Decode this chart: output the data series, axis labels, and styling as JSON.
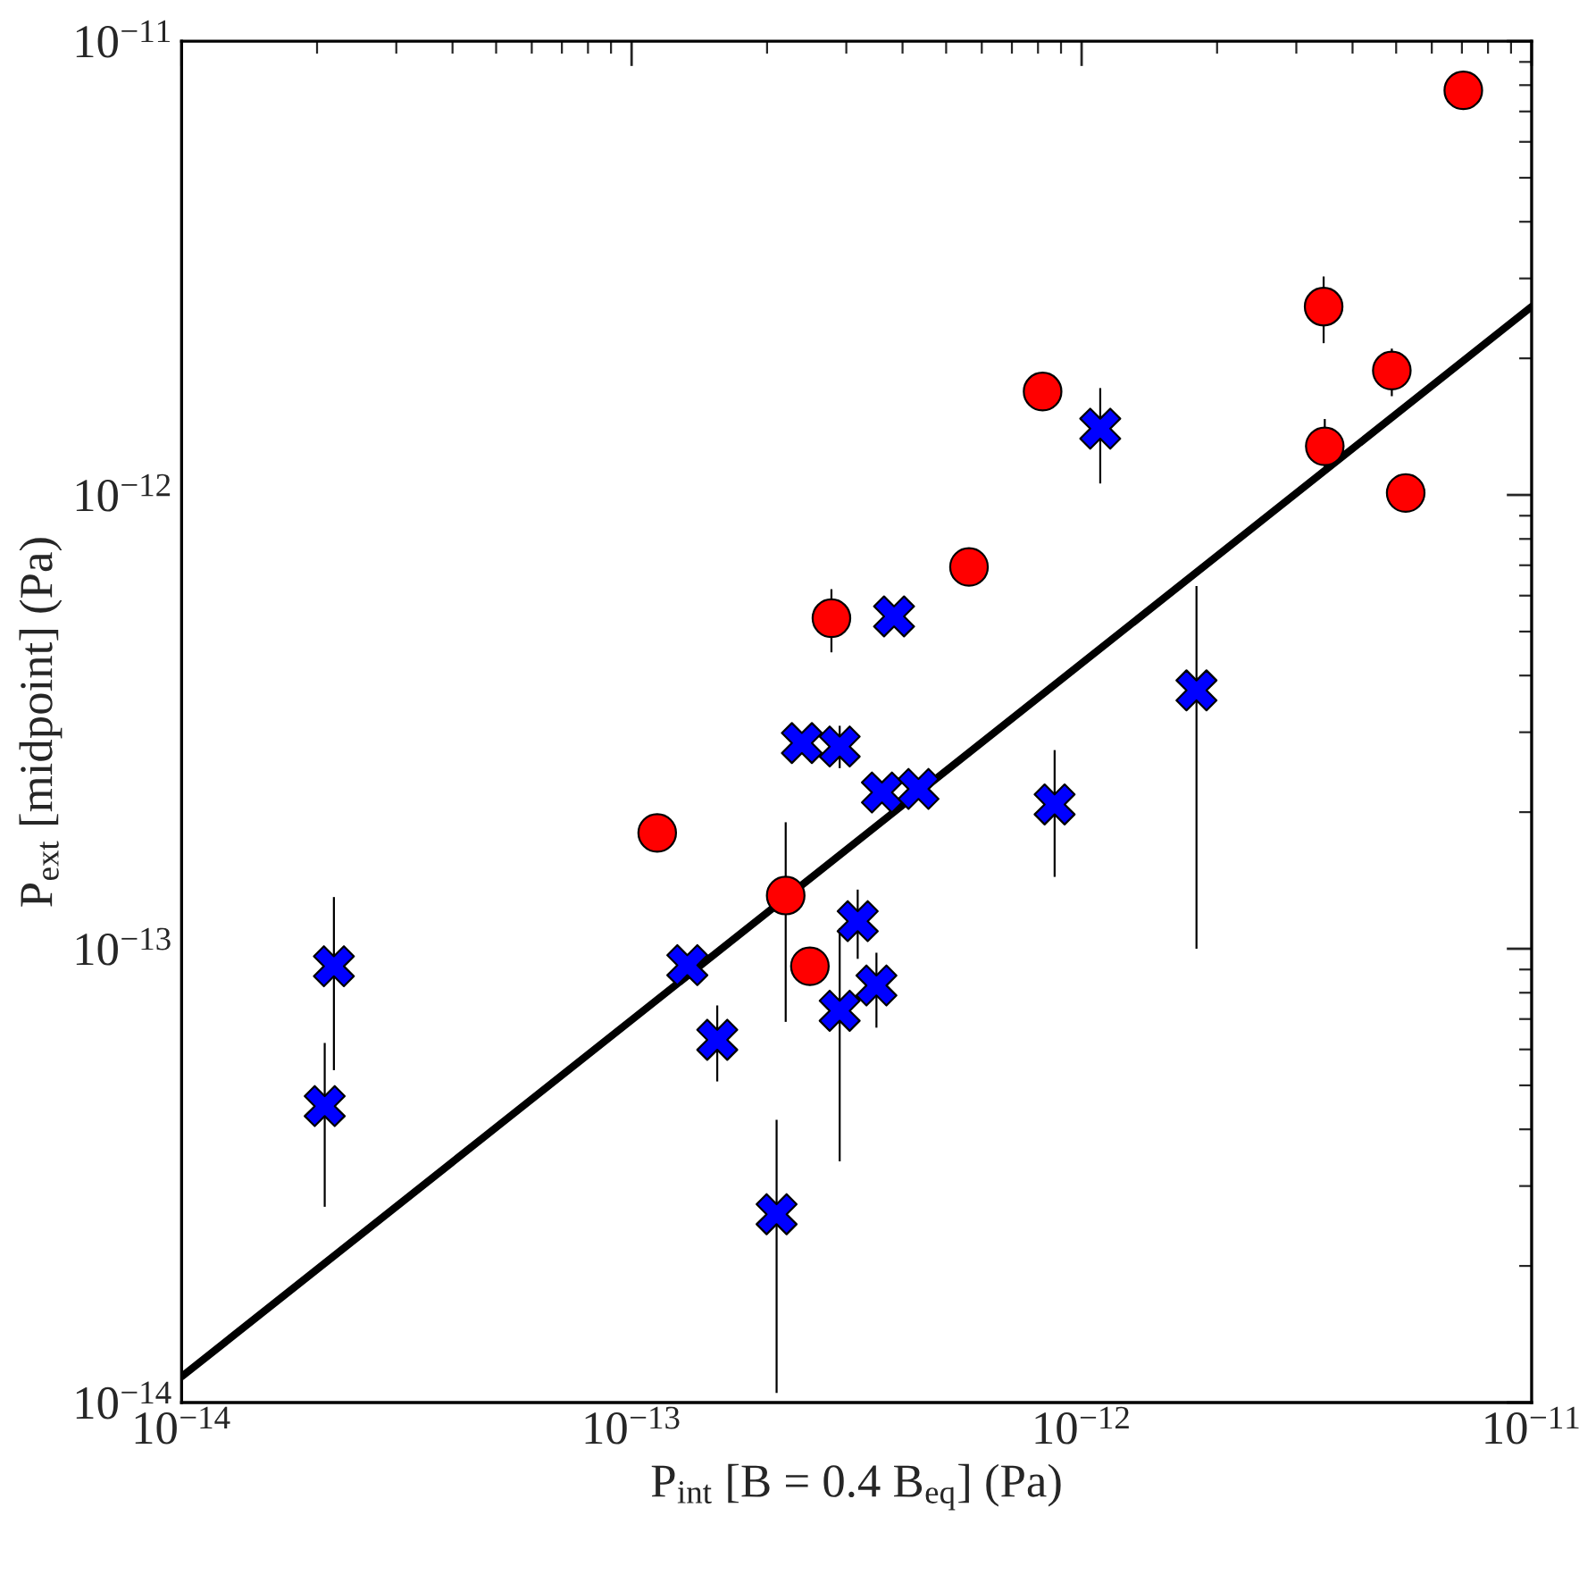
{
  "chart_data": {
    "type": "scatter",
    "xlabel": "P$_{int}$ [B = 0.4 B$_{eq}$] (Pa)",
    "ylabel": "P$_{ext}$ [midpoint] (Pa)",
    "log": "xy",
    "grid": false,
    "legend": false,
    "xlim": [
      1e-14,
      1e-11
    ],
    "ylim": [
      1e-14,
      1e-11
    ],
    "xticks": [
      {
        "value": 1e-14,
        "label": "10$^{−14}$"
      },
      {
        "value": 1e-13,
        "label": "10$^{−13}$"
      },
      {
        "value": 1e-12,
        "label": "10$^{−12}$"
      },
      {
        "value": 1e-11,
        "label": "10$^{−11}$"
      }
    ],
    "yticks": [
      {
        "value": 1e-14,
        "label": "10$^{−14}$"
      },
      {
        "value": 1e-13,
        "label": "10$^{−13}$"
      },
      {
        "value": 1e-12,
        "label": "10$^{−12}$"
      },
      {
        "value": 1e-11,
        "label": "10$^{−11}$"
      }
    ],
    "series": [
      {
        "type": "line",
        "color": "#000000",
        "marker": "none",
        "line_style": "solid",
        "x": [
          1e-14,
          1e-11
        ],
        "values": [
          1.14e-14,
          2.6e-12
        ]
      },
      {
        "color": "#ff0000",
        "marker": "circle",
        "x": [
          1.14e-13,
          2.2e-13,
          2.49e-13,
          2.78e-13,
          5.62e-13,
          8.19e-13,
          3.45e-12,
          3.47e-12,
          4.89e-12,
          5.25e-12,
          7.05e-12
        ],
        "values": [
          1.8e-13,
          1.31e-13,
          9.15e-14,
          5.35e-13,
          6.94e-13,
          1.69e-12,
          2.6e-12,
          1.28e-12,
          1.88e-12,
          1.01e-12,
          7.79e-12
        ],
        "errors": [
          null,
          [
            6.9e-14,
            1.9e-13
          ],
          [
            8.3e-14,
            1e-13
          ],
          [
            4.5e-13,
            6.2e-13
          ],
          null,
          null,
          [
            2.16e-12,
            3.03e-12
          ],
          [
            1.11e-12,
            1.47e-12
          ],
          [
            1.65e-12,
            2.1e-12
          ],
          null,
          null
        ]
      },
      {
        "color": "#0000ff",
        "marker": "cross",
        "x": [
          2.08e-14,
          2.18e-14,
          1.33e-13,
          1.55e-13,
          2.1e-13,
          2.39e-13,
          2.9e-13,
          2.9e-13,
          3.18e-13,
          3.5e-13,
          3.6e-13,
          4.34e-13,
          3.83e-13,
          1.1e-12,
          8.71e-13,
          1.8e-12
        ],
        "values": [
          4.5e-14,
          9.15e-14,
          9.2e-14,
          6.3e-14,
          2.6e-14,
          2.84e-13,
          2.79e-13,
          7.3e-14,
          1.15e-13,
          8.3e-14,
          2.21e-13,
          2.25e-13,
          5.4e-13,
          1.4e-12,
          2.08e-13,
          3.71e-13
        ],
        "errors": [
          [
            2.7e-14,
            6.2e-14
          ],
          [
            5.4e-14,
            1.3e-13
          ],
          null,
          [
            5.1e-14,
            7.5e-14
          ],
          [
            1.05e-14,
            4.2e-14
          ],
          null,
          [
            2.5e-13,
            3.1e-13
          ],
          [
            3.4e-14,
            1.11e-13
          ],
          [
            9.5e-14,
            1.35e-13
          ],
          [
            6.7e-14,
            9.8e-14
          ],
          null,
          null,
          null,
          [
            1.06e-12,
            1.72e-12
          ],
          [
            1.44e-13,
            2.74e-13
          ],
          [
            1e-13,
            6.3e-13
          ]
        ]
      }
    ]
  }
}
